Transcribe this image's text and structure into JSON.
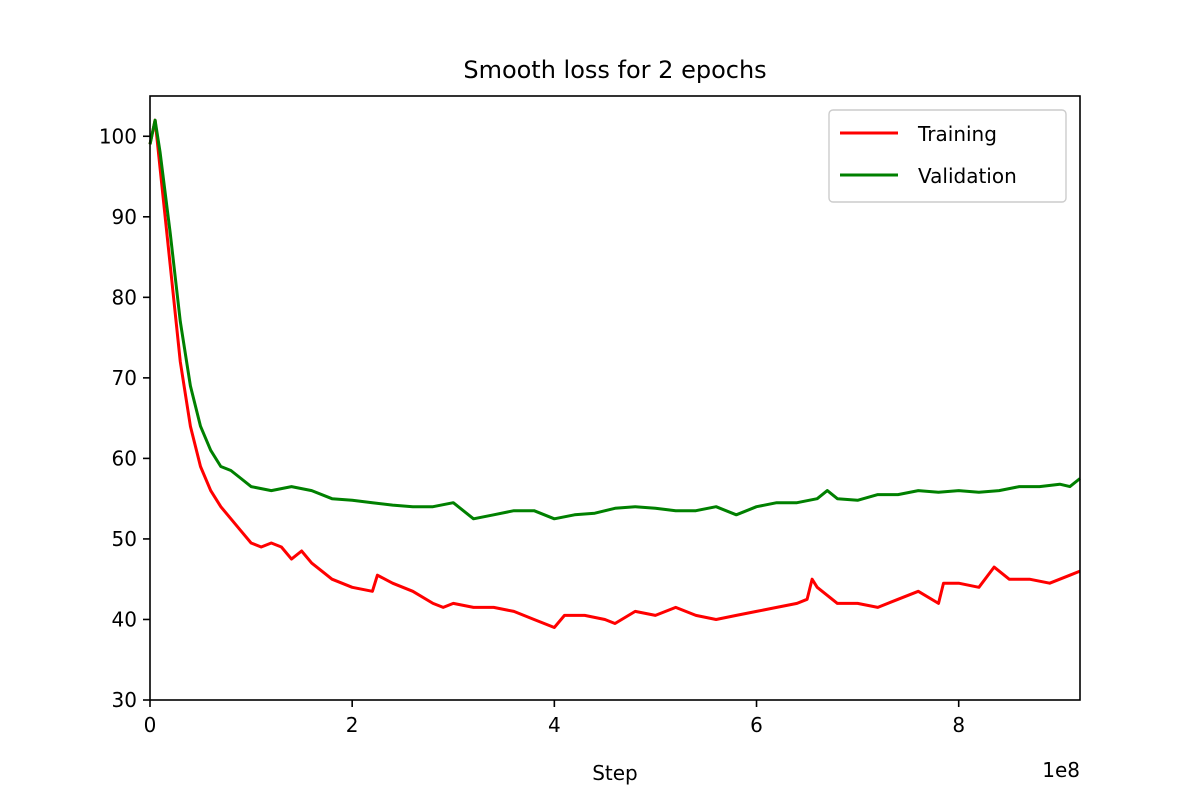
{
  "chart_data": {
    "type": "line",
    "title": "Smooth loss for 2 epochs",
    "xlabel": "Step",
    "ylabel": "",
    "x_offset_label": "1e8",
    "xlim": [
      0,
      9.2
    ],
    "ylim": [
      30,
      105
    ],
    "x_ticks": [
      0,
      2,
      4,
      6,
      8
    ],
    "x_tick_labels": [
      "0",
      "2",
      "4",
      "6",
      "8"
    ],
    "y_ticks": [
      30,
      40,
      50,
      60,
      70,
      80,
      90,
      100
    ],
    "y_tick_labels": [
      "30",
      "40",
      "50",
      "60",
      "70",
      "80",
      "90",
      "100"
    ],
    "grid": false,
    "legend_position": "upper right",
    "series": [
      {
        "name": "Training",
        "color": "#ff0000",
        "x": [
          0.0,
          0.05,
          0.1,
          0.2,
          0.3,
          0.4,
          0.5,
          0.6,
          0.7,
          0.8,
          0.9,
          1.0,
          1.1,
          1.2,
          1.3,
          1.4,
          1.5,
          1.6,
          1.7,
          1.8,
          2.0,
          2.2,
          2.25,
          2.4,
          2.6,
          2.8,
          2.9,
          3.0,
          3.2,
          3.4,
          3.6,
          3.8,
          4.0,
          4.1,
          4.3,
          4.5,
          4.6,
          4.8,
          5.0,
          5.2,
          5.4,
          5.6,
          5.8,
          6.0,
          6.2,
          6.4,
          6.5,
          6.55,
          6.6,
          6.8,
          7.0,
          7.2,
          7.4,
          7.6,
          7.8,
          7.85,
          8.0,
          8.2,
          8.35,
          8.5,
          8.7,
          8.9,
          9.1,
          9.2
        ],
        "y": [
          99,
          102,
          96,
          84,
          72,
          64,
          59,
          56,
          54,
          52.5,
          51,
          49.5,
          49,
          49.5,
          49,
          47.5,
          48.5,
          47,
          46,
          45,
          44,
          43.5,
          45.5,
          44.5,
          43.5,
          42,
          41.5,
          42,
          41.5,
          41.5,
          41,
          40,
          39,
          40.5,
          40.5,
          40,
          39.5,
          41,
          40.5,
          41.5,
          40.5,
          40,
          40.5,
          41,
          41.5,
          42,
          42.5,
          45,
          44,
          42,
          42,
          41.5,
          42.5,
          43.5,
          42,
          44.5,
          44.5,
          44,
          46.5,
          45,
          45,
          44.5,
          45.5,
          46
        ]
      },
      {
        "name": "Validation",
        "color": "#008000",
        "x": [
          0.0,
          0.05,
          0.1,
          0.2,
          0.3,
          0.4,
          0.5,
          0.6,
          0.7,
          0.8,
          0.9,
          1.0,
          1.2,
          1.4,
          1.6,
          1.8,
          2.0,
          2.2,
          2.4,
          2.6,
          2.8,
          3.0,
          3.2,
          3.4,
          3.6,
          3.8,
          4.0,
          4.2,
          4.4,
          4.6,
          4.8,
          5.0,
          5.2,
          5.4,
          5.6,
          5.8,
          6.0,
          6.2,
          6.4,
          6.6,
          6.7,
          6.8,
          7.0,
          7.2,
          7.4,
          7.6,
          7.8,
          8.0,
          8.2,
          8.4,
          8.6,
          8.8,
          9.0,
          9.1,
          9.2
        ],
        "y": [
          99,
          102,
          98,
          88,
          77,
          69,
          64,
          61,
          59,
          58.5,
          57.5,
          56.5,
          56,
          56.5,
          56,
          55,
          54.8,
          54.5,
          54.2,
          54,
          54,
          54.5,
          52.5,
          53,
          53.5,
          53.5,
          52.5,
          53,
          53.2,
          53.8,
          54,
          53.8,
          53.5,
          53.5,
          54,
          53,
          54,
          54.5,
          54.5,
          55,
          56,
          55,
          54.8,
          55.5,
          55.5,
          56,
          55.8,
          56,
          55.8,
          56,
          56.5,
          56.5,
          56.8,
          56.5,
          57.5
        ]
      }
    ]
  }
}
